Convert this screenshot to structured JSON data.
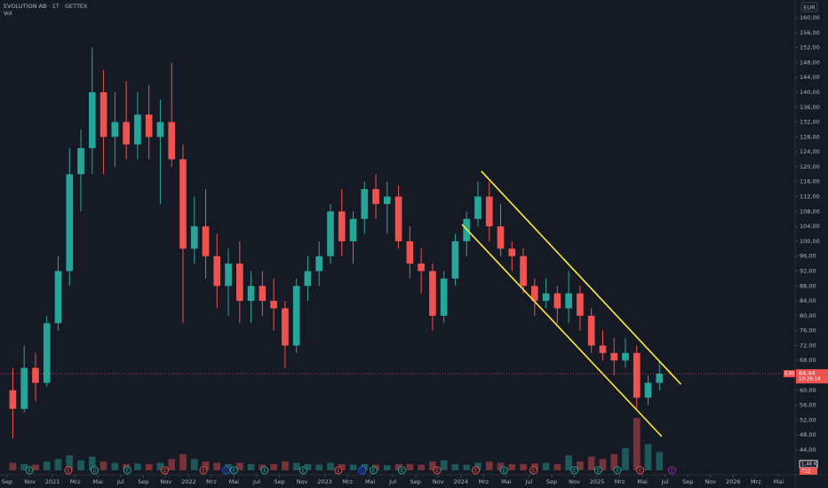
{
  "chart_data": {
    "type": "candlestick",
    "title": "EVOLUTION AB · 1T · GETTEX",
    "volume_title": "Vol",
    "currency": "EUR",
    "x": [
      0.5,
      1.5,
      2.5,
      3.5,
      4.5,
      5.5,
      6.5,
      7.5,
      8.5,
      9.5,
      10.5,
      11.5,
      12.5,
      13.5,
      14.5,
      15.5,
      16.5,
      17.5,
      18.5,
      19.5,
      20.5,
      21.5,
      22.5,
      23.5,
      24.5,
      25.5,
      26.5,
      27.5,
      28.5,
      29.5,
      30.5,
      31.5,
      32.5,
      33.5,
      34.5,
      35.5,
      36.5,
      37.5,
      38.5,
      39.5,
      40.5,
      41.5,
      42.5,
      43.5,
      44.5,
      45.5,
      46.5,
      47.5,
      48.5,
      49.5,
      50.5,
      51.5,
      52.5,
      53.5,
      54.5,
      55.5,
      56.5,
      57.5
    ],
    "open": [
      60,
      55,
      66,
      62,
      78,
      92,
      118,
      125,
      140,
      128,
      132,
      126,
      134,
      128,
      132,
      122,
      98,
      104,
      96,
      88,
      94,
      84,
      88,
      84,
      82,
      72,
      88,
      92,
      96,
      108,
      100,
      106,
      114,
      110,
      112,
      100,
      94,
      92,
      80,
      90,
      100,
      106,
      112,
      104,
      98,
      96,
      88,
      84,
      86,
      82,
      86,
      80,
      72,
      70,
      68,
      70,
      58,
      62
    ],
    "high": [
      66,
      72,
      70,
      80,
      96,
      125,
      130,
      152,
      146,
      140,
      143,
      140,
      142,
      138,
      148,
      126,
      112,
      114,
      102,
      98,
      100,
      92,
      92,
      90,
      84,
      90,
      96,
      100,
      110,
      114,
      108,
      116,
      118,
      116,
      115,
      104,
      98,
      94,
      92,
      102,
      108,
      116,
      116,
      110,
      100,
      98,
      90,
      90,
      88,
      92,
      88,
      82,
      76,
      74,
      74,
      72,
      64,
      68
    ],
    "low": [
      47,
      54,
      57,
      61,
      76,
      88,
      108,
      118,
      118,
      120,
      122,
      122,
      122,
      110,
      120,
      78,
      94,
      90,
      82,
      80,
      78,
      78,
      80,
      76,
      66,
      70,
      84,
      88,
      94,
      96,
      94,
      102,
      106,
      102,
      98,
      90,
      86,
      76,
      78,
      88,
      96,
      104,
      100,
      96,
      92,
      86,
      80,
      82,
      78,
      78,
      76,
      70,
      68,
      64,
      66,
      55,
      56,
      60
    ],
    "close": [
      55,
      66,
      62,
      78,
      92,
      118,
      125,
      140,
      128,
      132,
      126,
      134,
      128,
      132,
      122,
      98,
      104,
      96,
      88,
      94,
      84,
      88,
      84,
      82,
      72,
      88,
      92,
      96,
      108,
      100,
      106,
      114,
      110,
      112,
      100,
      94,
      92,
      80,
      90,
      100,
      106,
      112,
      104,
      98,
      96,
      88,
      84,
      86,
      82,
      86,
      80,
      72,
      70,
      68,
      70,
      58,
      62,
      64.44
    ],
    "volume": [
      600,
      500,
      450,
      700,
      900,
      1200,
      800,
      1100,
      700,
      600,
      500,
      550,
      500,
      600,
      900,
      1300,
      900,
      700,
      600,
      500,
      600,
      500,
      450,
      500,
      700,
      600,
      500,
      450,
      600,
      500,
      450,
      500,
      450,
      400,
      500,
      500,
      450,
      700,
      800,
      500,
      450,
      600,
      700,
      600,
      500,
      500,
      550,
      600,
      500,
      1200,
      700,
      1100,
      900,
      1300,
      1800,
      4200,
      2100,
      1460
    ],
    "vlim": [
      0,
      5000
    ],
    "up_color": "#26a69a",
    "down_color": "#ef5350",
    "xlim": [
      -0.63,
      69.46
    ],
    "ylim": [
      42.5,
      161.5
    ],
    "yticks": [
      {
        "value": 44,
        "label": "44,00"
      },
      {
        "value": 48,
        "label": "48,00"
      },
      {
        "value": 52,
        "label": "52,00"
      },
      {
        "value": 56,
        "label": "56,00"
      },
      {
        "value": 60,
        "label": "60,00"
      },
      {
        "value": 64,
        "label": "64,00"
      },
      {
        "value": 68,
        "label": "68,00"
      },
      {
        "value": 72,
        "label": "72,00"
      },
      {
        "value": 76,
        "label": "76,00"
      },
      {
        "value": 80,
        "label": "80,00"
      },
      {
        "value": 84,
        "label": "84,00"
      },
      {
        "value": 88,
        "label": "88,00"
      },
      {
        "value": 92,
        "label": "92,00"
      },
      {
        "value": 96,
        "label": "96,00"
      },
      {
        "value": 100,
        "label": "100,00"
      },
      {
        "value": 104,
        "label": "104,00"
      },
      {
        "value": 108,
        "label": "108,00"
      },
      {
        "value": 112,
        "label": "112,00"
      },
      {
        "value": 116,
        "label": "116,00"
      },
      {
        "value": 120,
        "label": "120,00"
      },
      {
        "value": 124,
        "label": "124,00"
      },
      {
        "value": 128,
        "label": "128,00"
      },
      {
        "value": 132,
        "label": "132,00"
      },
      {
        "value": 136,
        "label": "136,00"
      },
      {
        "value": 140,
        "label": "140,00"
      },
      {
        "value": 144,
        "label": "144,00"
      },
      {
        "value": 148,
        "label": "148,00"
      },
      {
        "value": 152,
        "label": "152,00"
      },
      {
        "value": 156,
        "label": "156,00"
      },
      {
        "value": 160,
        "label": "160,00"
      }
    ],
    "xticks": [
      {
        "value": 0,
        "label": "Sep"
      },
      {
        "value": 2,
        "label": "Nov"
      },
      {
        "value": 4,
        "label": "2021"
      },
      {
        "value": 6,
        "label": "Mrz"
      },
      {
        "value": 8,
        "label": "Mai"
      },
      {
        "value": 10,
        "label": "Jul"
      },
      {
        "value": 12,
        "label": "Sep"
      },
      {
        "value": 14,
        "label": "Nov"
      },
      {
        "value": 16,
        "label": "2022"
      },
      {
        "value": 18,
        "label": "Mrz"
      },
      {
        "value": 20,
        "label": "Mai"
      },
      {
        "value": 22,
        "label": "Jul"
      },
      {
        "value": 24,
        "label": "Sep"
      },
      {
        "value": 26,
        "label": "Nov"
      },
      {
        "value": 28,
        "label": "2023"
      },
      {
        "value": 30,
        "label": "Mrz"
      },
      {
        "value": 32,
        "label": "Mai"
      },
      {
        "value": 34,
        "label": "Jul"
      },
      {
        "value": 36,
        "label": "Sep"
      },
      {
        "value": 38,
        "label": "Nov"
      },
      {
        "value": 40,
        "label": "2024"
      },
      {
        "value": 42,
        "label": "Mrz"
      },
      {
        "value": 44,
        "label": "Mai"
      },
      {
        "value": 46,
        "label": "Jul"
      },
      {
        "value": 48,
        "label": "Sep"
      },
      {
        "value": 50,
        "label": "Nov"
      },
      {
        "value": 52,
        "label": "2025"
      },
      {
        "value": 54,
        "label": "Mrz"
      },
      {
        "value": 56,
        "label": "Mai"
      },
      {
        "value": 58,
        "label": "Jul"
      },
      {
        "value": 60,
        "label": "Sep"
      },
      {
        "value": 62,
        "label": "Nov"
      },
      {
        "value": 64,
        "label": "2026"
      },
      {
        "value": 66,
        "label": "Mrz"
      },
      {
        "value": 68,
        "label": "Mai"
      }
    ],
    "grid": false,
    "trendlines": [
      {
        "color": "#ffeb3b",
        "x": [
          41.8,
          59.4
        ],
        "y": [
          118.8,
          61.6
        ]
      },
      {
        "color": "#ffeb3b",
        "x": [
          40.1,
          57.7
        ],
        "y": [
          104.5,
          47.6
        ]
      }
    ],
    "last_price": {
      "value": 64.44,
      "label": "64,44"
    },
    "countdown": "10:26:16",
    "price_badge": "E30",
    "volume_labels": [
      {
        "value": 1460,
        "label": "1,46 K",
        "color": "#e0e3eb"
      },
      {
        "value": 712,
        "label": "712",
        "color": "#ef5350"
      }
    ],
    "events": [
      {
        "x": 1.96,
        "label": "E",
        "color": "#26a69a"
      },
      {
        "x": 5.4,
        "label": "E",
        "color": "#ef5350"
      },
      {
        "x": 7.7,
        "label": "D",
        "color": "#26a69a"
      },
      {
        "x": 10.6,
        "label": "E",
        "color": "#26a69a"
      },
      {
        "x": 13.9,
        "label": "E",
        "color": "#ef5350"
      },
      {
        "x": 17.3,
        "label": "E",
        "color": "#ef5350"
      },
      {
        "x": 19.3,
        "label": "D",
        "color": "#2962ff"
      },
      {
        "x": 20.0,
        "label": "E",
        "color": "#26a69a"
      },
      {
        "x": 22.7,
        "label": "E",
        "color": "#26a69a"
      },
      {
        "x": 26.1,
        "label": "E",
        "color": "#26a69a"
      },
      {
        "x": 29.2,
        "label": "E",
        "color": "#ef5350"
      },
      {
        "x": 31.3,
        "label": "D",
        "color": "#2962ff"
      },
      {
        "x": 32.3,
        "label": "E",
        "color": "#26a69a"
      },
      {
        "x": 34.8,
        "label": "E",
        "color": "#26a69a"
      },
      {
        "x": 37.9,
        "label": "E",
        "color": "#ef5350"
      },
      {
        "x": 41.3,
        "label": "E",
        "color": "#ef5350"
      },
      {
        "x": 43.8,
        "label": "E",
        "color": "#26a69a"
      },
      {
        "x": 46.4,
        "label": "E",
        "color": "#ef5350"
      },
      {
        "x": 50.0,
        "label": "E",
        "color": "#26a69a"
      },
      {
        "x": 52.1,
        "label": "E",
        "color": "#26a69a"
      },
      {
        "x": 53.8,
        "label": "E",
        "color": "#26a69a"
      },
      {
        "x": 55.8,
        "label": "E",
        "color": "#ef5350"
      },
      {
        "x": 58.6,
        "label": "E",
        "color": "#9c27b0"
      }
    ]
  }
}
